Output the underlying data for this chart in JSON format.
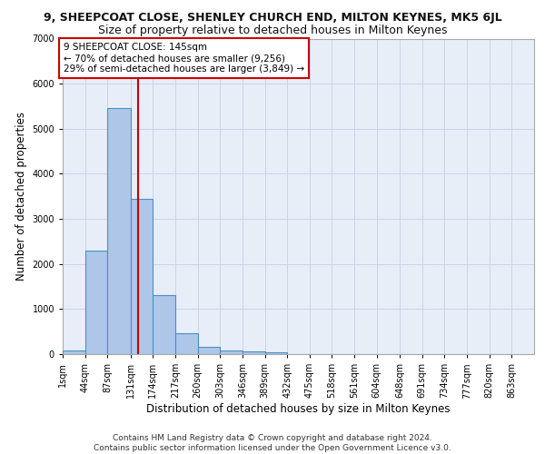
{
  "title_line1": "9, SHEEPCOAT CLOSE, SHENLEY CHURCH END, MILTON KEYNES, MK5 6JL",
  "title_line2": "Size of property relative to detached houses in Milton Keynes",
  "xlabel": "Distribution of detached houses by size in Milton Keynes",
  "ylabel": "Number of detached properties",
  "bin_labels": [
    "1sqm",
    "44sqm",
    "87sqm",
    "131sqm",
    "174sqm",
    "217sqm",
    "260sqm",
    "303sqm",
    "346sqm",
    "389sqm",
    "432sqm",
    "475sqm",
    "518sqm",
    "561sqm",
    "604sqm",
    "648sqm",
    "691sqm",
    "734sqm",
    "777sqm",
    "820sqm",
    "863sqm"
  ],
  "bin_edges": [
    1,
    44,
    87,
    131,
    174,
    217,
    260,
    303,
    346,
    389,
    432,
    475,
    518,
    561,
    604,
    648,
    691,
    734,
    777,
    820,
    863
  ],
  "bar_heights": [
    80,
    2300,
    5450,
    3450,
    1310,
    470,
    160,
    90,
    60,
    40,
    10,
    5,
    3,
    2,
    1,
    1,
    1,
    0,
    0,
    0
  ],
  "bar_color": "#aec6e8",
  "bar_edge_color": "#4a90c4",
  "property_size": 145,
  "property_line_color": "#cc0000",
  "annotation_text": "9 SHEEPCOAT CLOSE: 145sqm\n← 70% of detached houses are smaller (9,256)\n29% of semi-detached houses are larger (3,849) →",
  "annotation_box_color": "#ffffff",
  "annotation_box_edge": "#cc0000",
  "ylim": [
    0,
    7000
  ],
  "yticks": [
    0,
    1000,
    2000,
    3000,
    4000,
    5000,
    6000,
    7000
  ],
  "grid_color": "#c8d4e8",
  "background_color": "#e8eef8",
  "footer_line1": "Contains HM Land Registry data © Crown copyright and database right 2024.",
  "footer_line2": "Contains public sector information licensed under the Open Government Licence v3.0.",
  "title1_fontsize": 9,
  "title2_fontsize": 9,
  "xlabel_fontsize": 8.5,
  "ylabel_fontsize": 8.5,
  "tick_fontsize": 7,
  "footer_fontsize": 6.5,
  "annot_fontsize": 7.5
}
